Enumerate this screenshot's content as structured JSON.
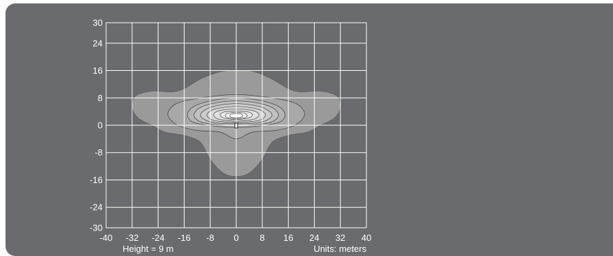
{
  "chart_data": {
    "type": "contour",
    "x_ticks": [
      "-40",
      "-32",
      "-24",
      "-16",
      "-8",
      "0",
      "8",
      "16",
      "24",
      "32",
      "40"
    ],
    "y_ticks": [
      "30",
      "24",
      "16",
      "8",
      "0",
      "-8",
      "-16",
      "-24",
      "-30"
    ],
    "xlim": [
      -40,
      40
    ],
    "ylim": [
      -30,
      30
    ],
    "grid": true,
    "height_label": "Height = 9 m",
    "units_label": "Units: meters",
    "fixture": {
      "x": 0,
      "y": 0
    },
    "contours": [
      {
        "level": 1,
        "color": "#9a9a9a",
        "points": [
          [
            -31,
            8.5
          ],
          [
            -26,
            10
          ],
          [
            -18,
            10
          ],
          [
            -10,
            14
          ],
          [
            -3,
            16
          ],
          [
            4,
            16
          ],
          [
            10,
            14
          ],
          [
            18,
            10
          ],
          [
            26,
            10
          ],
          [
            31,
            8.5
          ],
          [
            32,
            5
          ],
          [
            30,
            2
          ],
          [
            26,
            0
          ],
          [
            22,
            -2
          ],
          [
            16,
            -3
          ],
          [
            11,
            -5
          ],
          [
            8,
            -10
          ],
          [
            4,
            -14
          ],
          [
            0,
            -15
          ],
          [
            -4,
            -14
          ],
          [
            -8,
            -10
          ],
          [
            -11,
            -5
          ],
          [
            -16,
            -3
          ],
          [
            -22,
            -2
          ],
          [
            -26,
            0
          ],
          [
            -30,
            2
          ],
          [
            -32,
            5
          ]
        ]
      },
      {
        "level": 2,
        "color": "#a8a8a8",
        "points": [
          [
            -21,
            3
          ],
          [
            -19,
            6
          ],
          [
            -14,
            7.5
          ],
          [
            -7,
            8.5
          ],
          [
            0,
            9
          ],
          [
            7,
            8.5
          ],
          [
            14,
            7.5
          ],
          [
            19,
            6
          ],
          [
            21,
            3
          ],
          [
            18,
            0
          ],
          [
            12,
            -1.5
          ],
          [
            5,
            -2
          ],
          [
            0,
            -4
          ],
          [
            -5,
            -2
          ],
          [
            -12,
            -1.5
          ],
          [
            -18,
            0
          ]
        ]
      },
      {
        "level": 3,
        "color": "#b4b4b4",
        "points": [
          [
            -15,
            3
          ],
          [
            -13,
            5.5
          ],
          [
            -7,
            7.3
          ],
          [
            0,
            8
          ],
          [
            7,
            7.3
          ],
          [
            13,
            5.5
          ],
          [
            15,
            3
          ],
          [
            13,
            0.8
          ],
          [
            7,
            -0.2
          ],
          [
            0,
            -0.6
          ],
          [
            -7,
            -0.2
          ],
          [
            -13,
            0.8
          ]
        ]
      },
      {
        "level": 4,
        "color": "#c0c0c0",
        "points": [
          [
            -13,
            3
          ],
          [
            -11,
            5.2
          ],
          [
            -6,
            6.6
          ],
          [
            0,
            7.1
          ],
          [
            6,
            6.6
          ],
          [
            11,
            5.2
          ],
          [
            13,
            3
          ],
          [
            11,
            1
          ],
          [
            6,
            0.2
          ],
          [
            0,
            0
          ],
          [
            -6,
            0.2
          ],
          [
            -11,
            1
          ]
        ]
      },
      {
        "level": 5,
        "color": "#cccccc",
        "points": [
          [
            -11,
            3
          ],
          [
            -9,
            4.8
          ],
          [
            -5,
            5.9
          ],
          [
            0,
            6.3
          ],
          [
            5,
            5.9
          ],
          [
            9,
            4.8
          ],
          [
            11,
            3
          ],
          [
            9,
            1.3
          ],
          [
            5,
            0.6
          ],
          [
            0,
            0.4
          ],
          [
            -5,
            0.6
          ],
          [
            -9,
            1.3
          ]
        ]
      },
      {
        "level": 6,
        "color": "#d6d6d6",
        "points": [
          [
            -9,
            3
          ],
          [
            -7.5,
            4.4
          ],
          [
            -4,
            5.2
          ],
          [
            0,
            5.5
          ],
          [
            4,
            5.2
          ],
          [
            7.5,
            4.4
          ],
          [
            9,
            3
          ],
          [
            7.5,
            1.6
          ],
          [
            4,
            1
          ],
          [
            0,
            0.8
          ],
          [
            -4,
            1
          ],
          [
            -7.5,
            1.6
          ]
        ]
      },
      {
        "level": 7,
        "color": "#e0e0e0",
        "points": [
          [
            -7,
            3
          ],
          [
            -5.8,
            4.1
          ],
          [
            -3,
            4.6
          ],
          [
            0,
            4.8
          ],
          [
            3,
            4.6
          ],
          [
            5.8,
            4.1
          ],
          [
            7,
            3
          ],
          [
            5.8,
            1.9
          ],
          [
            3,
            1.4
          ],
          [
            0,
            1.2
          ],
          [
            -3,
            1.4
          ],
          [
            -5.8,
            1.9
          ]
        ]
      },
      {
        "level": 8,
        "color": "#eaeaea",
        "points": [
          [
            -5,
            3
          ],
          [
            -4,
            3.8
          ],
          [
            -2,
            4.1
          ],
          [
            0,
            4.2
          ],
          [
            2,
            4.1
          ],
          [
            4,
            3.8
          ],
          [
            5,
            3
          ],
          [
            4,
            2.2
          ],
          [
            2,
            1.8
          ],
          [
            0,
            1.7
          ],
          [
            -2,
            1.8
          ],
          [
            -4,
            2.2
          ]
        ]
      },
      {
        "level": 9,
        "color": "#f3f3f3",
        "points": [
          [
            -3.4,
            2.8
          ],
          [
            -2.6,
            3.5
          ],
          [
            -1.2,
            3.7
          ],
          [
            0,
            3.8
          ],
          [
            1.2,
            3.7
          ],
          [
            2.6,
            3.5
          ],
          [
            3.4,
            2.8
          ],
          [
            2.6,
            2.2
          ],
          [
            1.2,
            2
          ],
          [
            0,
            2
          ],
          [
            -1.2,
            2
          ],
          [
            -2.6,
            2.2
          ]
        ]
      },
      {
        "level": 10,
        "color": "#fbfbfb",
        "points": [
          [
            -2,
            2.8
          ],
          [
            -1.4,
            3.3
          ],
          [
            0,
            3.4
          ],
          [
            1.4,
            3.3
          ],
          [
            2,
            2.8
          ],
          [
            1.4,
            2.3
          ],
          [
            0,
            2.2
          ],
          [
            -1.4,
            2.3
          ]
        ]
      }
    ]
  }
}
